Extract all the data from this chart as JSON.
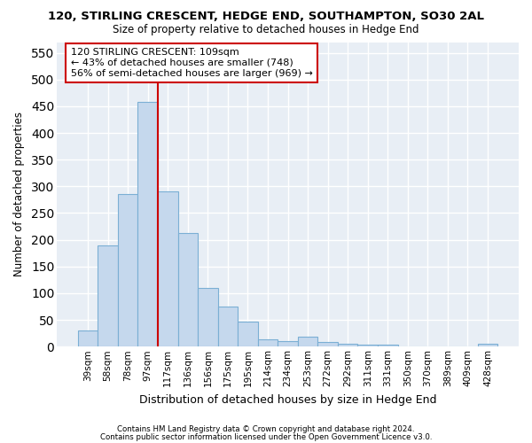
{
  "title": "120, STIRLING CRESCENT, HEDGE END, SOUTHAMPTON, SO30 2AL",
  "subtitle": "Size of property relative to detached houses in Hedge End",
  "xlabel": "Distribution of detached houses by size in Hedge End",
  "ylabel": "Number of detached properties",
  "categories": [
    "39sqm",
    "58sqm",
    "78sqm",
    "97sqm",
    "117sqm",
    "136sqm",
    "156sqm",
    "175sqm",
    "195sqm",
    "214sqm",
    "234sqm",
    "253sqm",
    "272sqm",
    "292sqm",
    "311sqm",
    "331sqm",
    "350sqm",
    "370sqm",
    "389sqm",
    "409sqm",
    "428sqm"
  ],
  "values": [
    30,
    190,
    285,
    458,
    290,
    213,
    110,
    75,
    47,
    13,
    10,
    18,
    8,
    6,
    4,
    3,
    1,
    1,
    0,
    0,
    5
  ],
  "bar_color": "#c5d8ed",
  "bar_edge_color": "#7bafd4",
  "highlight_line_color": "#cc0000",
  "highlight_line_index": 4,
  "annotation_text": "120 STIRLING CRESCENT: 109sqm\n← 43% of detached houses are smaller (748)\n56% of semi-detached houses are larger (969) →",
  "annotation_box_color": "#cc0000",
  "ylim": [
    0,
    570
  ],
  "yticks": [
    0,
    50,
    100,
    150,
    200,
    250,
    300,
    350,
    400,
    450,
    500,
    550
  ],
  "background_color": "#e8eef5",
  "grid_color": "#ffffff",
  "footer_line1": "Contains HM Land Registry data © Crown copyright and database right 2024.",
  "footer_line2": "Contains public sector information licensed under the Open Government Licence v3.0."
}
